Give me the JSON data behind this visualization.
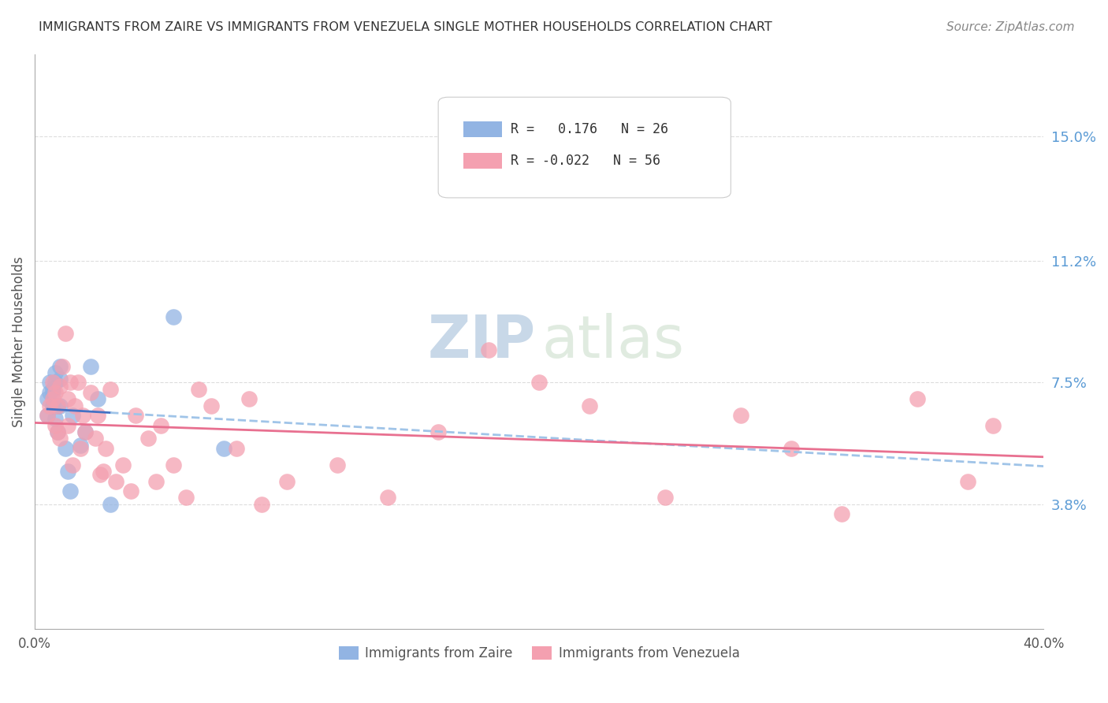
{
  "title": "IMMIGRANTS FROM ZAIRE VS IMMIGRANTS FROM VENEZUELA SINGLE MOTHER HOUSEHOLDS CORRELATION CHART",
  "source": "Source: ZipAtlas.com",
  "ylabel": "Single Mother Households",
  "xlim": [
    0.0,
    0.4
  ],
  "ylim": [
    0.0,
    0.175
  ],
  "xticks": [
    0.0,
    0.08,
    0.16,
    0.24,
    0.32,
    0.4
  ],
  "xticklabels": [
    "0.0%",
    "",
    "",
    "",
    "",
    "40.0%"
  ],
  "ytick_labels_right": [
    "15.0%",
    "11.2%",
    "7.5%",
    "3.8%"
  ],
  "ytick_vals_right": [
    0.15,
    0.112,
    0.075,
    0.038
  ],
  "zaire_R": 0.176,
  "zaire_N": 26,
  "venezuela_R": -0.022,
  "venezuela_N": 56,
  "zaire_color": "#92b4e3",
  "venezuela_color": "#f4a0b0",
  "zaire_line_color": "#4472c4",
  "venezuela_line_color": "#e87090",
  "dashed_line_color": "#a0c4e8",
  "background_color": "#ffffff",
  "grid_color": "#dddddd",
  "title_color": "#333333",
  "axis_label_color": "#555555",
  "right_tick_color": "#5b9bd5",
  "zaire_x": [
    0.005,
    0.005,
    0.006,
    0.006,
    0.007,
    0.007,
    0.007,
    0.008,
    0.008,
    0.008,
    0.009,
    0.009,
    0.01,
    0.01,
    0.01,
    0.012,
    0.013,
    0.014,
    0.015,
    0.018,
    0.02,
    0.022,
    0.025,
    0.03,
    0.055,
    0.075
  ],
  "zaire_y": [
    0.065,
    0.07,
    0.072,
    0.075,
    0.072,
    0.073,
    0.068,
    0.078,
    0.075,
    0.064,
    0.068,
    0.06,
    0.08,
    0.076,
    0.068,
    0.055,
    0.048,
    0.042,
    0.065,
    0.056,
    0.06,
    0.08,
    0.07,
    0.038,
    0.095,
    0.055
  ],
  "venezuela_x": [
    0.005,
    0.006,
    0.007,
    0.007,
    0.008,
    0.008,
    0.009,
    0.009,
    0.01,
    0.01,
    0.011,
    0.012,
    0.013,
    0.013,
    0.014,
    0.015,
    0.016,
    0.017,
    0.018,
    0.019,
    0.02,
    0.022,
    0.024,
    0.025,
    0.026,
    0.027,
    0.028,
    0.03,
    0.032,
    0.035,
    0.038,
    0.04,
    0.045,
    0.048,
    0.05,
    0.055,
    0.06,
    0.065,
    0.07,
    0.08,
    0.085,
    0.09,
    0.1,
    0.12,
    0.14,
    0.16,
    0.18,
    0.2,
    0.22,
    0.25,
    0.28,
    0.3,
    0.32,
    0.35,
    0.37,
    0.38
  ],
  "venezuela_y": [
    0.065,
    0.068,
    0.07,
    0.075,
    0.062,
    0.072,
    0.068,
    0.06,
    0.074,
    0.058,
    0.08,
    0.09,
    0.062,
    0.07,
    0.075,
    0.05,
    0.068,
    0.075,
    0.055,
    0.065,
    0.06,
    0.072,
    0.058,
    0.065,
    0.047,
    0.048,
    0.055,
    0.073,
    0.045,
    0.05,
    0.042,
    0.065,
    0.058,
    0.045,
    0.062,
    0.05,
    0.04,
    0.073,
    0.068,
    0.055,
    0.07,
    0.038,
    0.045,
    0.05,
    0.04,
    0.06,
    0.085,
    0.075,
    0.068,
    0.04,
    0.065,
    0.055,
    0.035,
    0.07,
    0.045,
    0.062
  ]
}
